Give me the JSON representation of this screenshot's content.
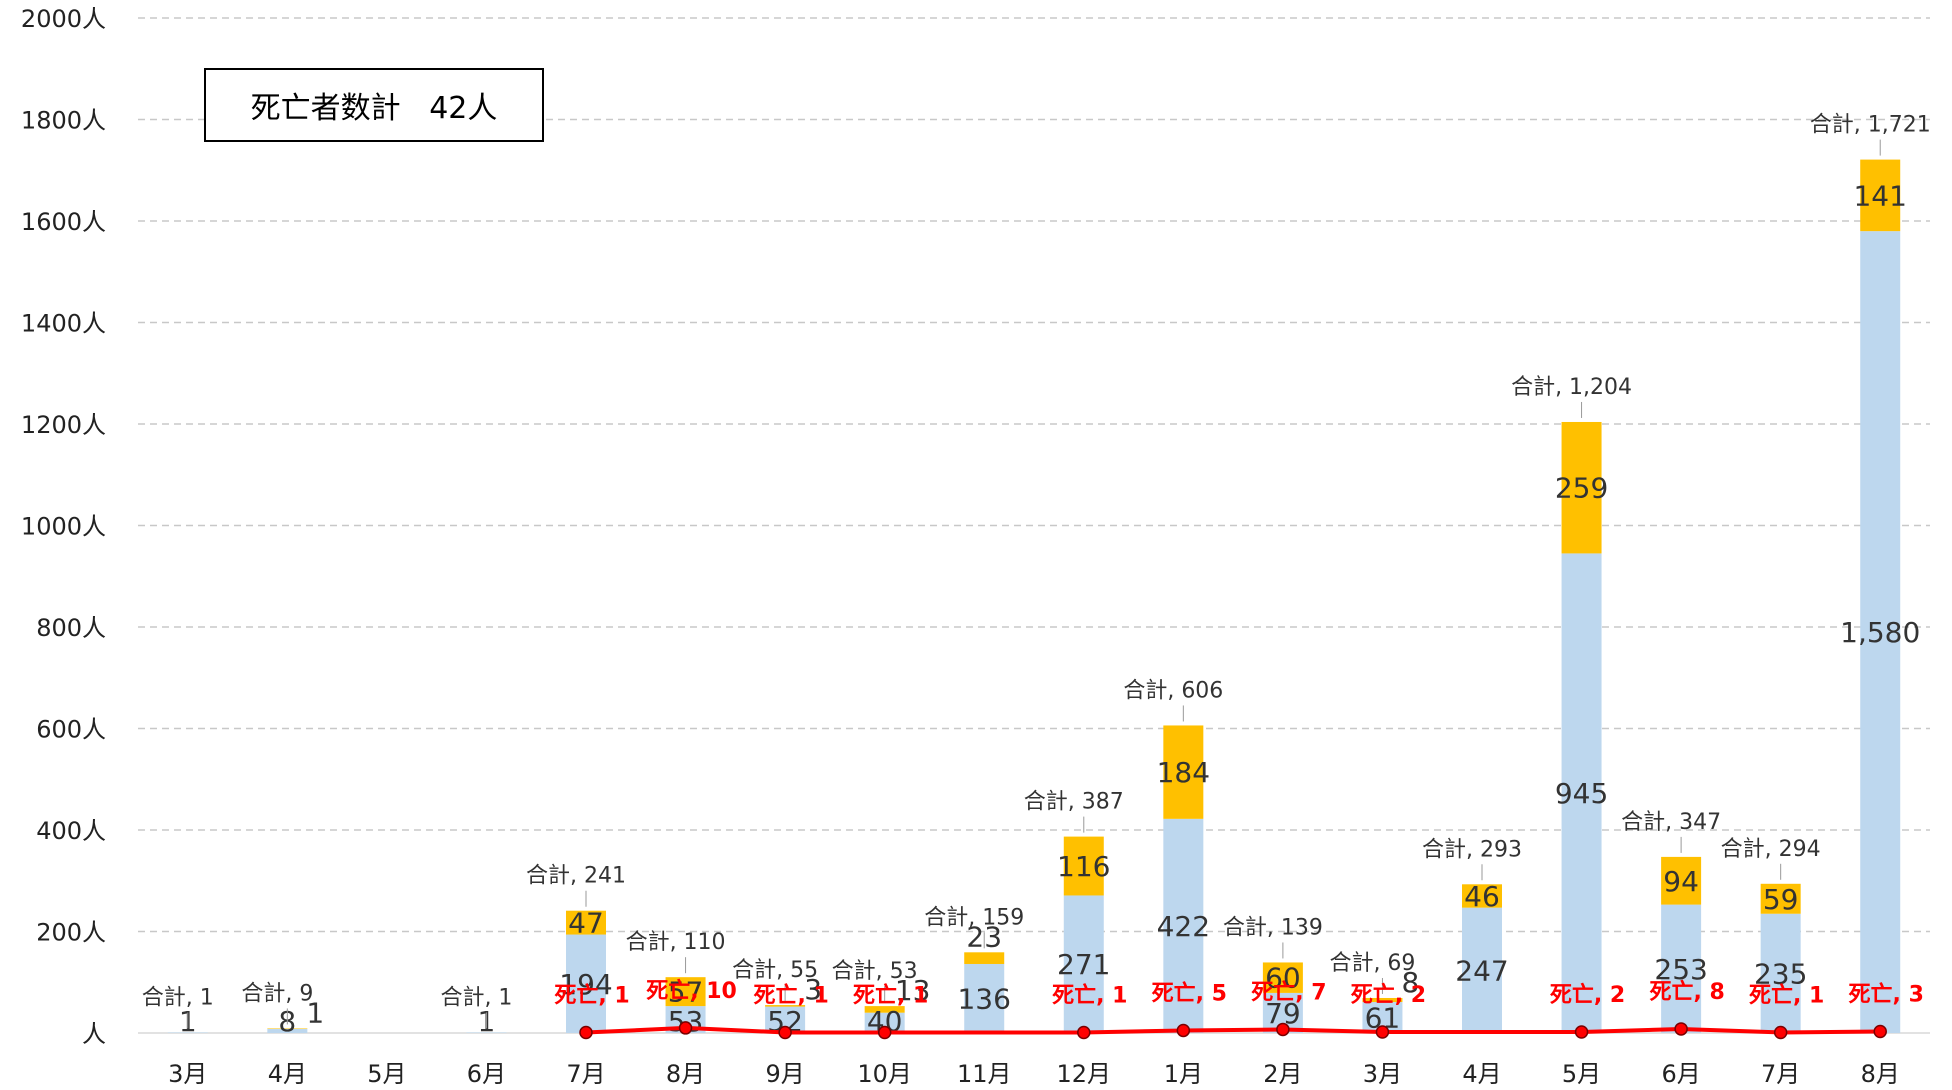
{
  "summary": {
    "label": "死亡者数計",
    "value": "42人"
  },
  "colors": {
    "base": "#bdd7ee",
    "top": "#ffc000",
    "line": "#ff0000",
    "grid": "#c8c8c8"
  },
  "chart_data": {
    "type": "bar",
    "stacked": true,
    "ylim": [
      0,
      2000
    ],
    "y_ticks": [
      "人",
      "200人",
      "400人",
      "600人",
      "800人",
      "1000人",
      "1200人",
      "1400人",
      "1600人",
      "1800人",
      "2000人"
    ],
    "grid": true,
    "categories": [
      "3月",
      "4月",
      "5月",
      "6月",
      "7月",
      "8月",
      "9月",
      "10月",
      "11月",
      "12月",
      "1月",
      "2月",
      "3月",
      "4月",
      "5月",
      "6月",
      "7月",
      "8月"
    ],
    "series": [
      {
        "values": [
          1,
          8,
          0,
          1,
          194,
          53,
          52,
          40,
          136,
          271,
          422,
          79,
          61,
          247,
          945,
          253,
          235,
          1580
        ],
        "labels": [
          "1",
          "8",
          "",
          "1",
          "194",
          "53",
          "52",
          "40",
          "136",
          "271",
          "422",
          "79",
          "61",
          "247",
          "945",
          "253",
          "235",
          "1,580"
        ]
      },
      {
        "values": [
          0,
          1,
          0,
          0,
          47,
          57,
          3,
          13,
          23,
          116,
          184,
          60,
          8,
          46,
          259,
          94,
          59,
          141
        ],
        "labels": [
          "",
          "1",
          "",
          "",
          "47",
          "57",
          "3",
          "13",
          "23",
          "116",
          "184",
          "60",
          "8",
          "46",
          "259",
          "94",
          "59",
          "141"
        ]
      }
    ],
    "totals": [
      "合計, 1",
      "合計, 9",
      "",
      "合計, 1",
      "合計, 241",
      "合計, 110",
      "合計, 55",
      "合計, 53",
      "合計, 159",
      "合計, 387",
      "合計, 606",
      "合計, 139",
      "合計, 69",
      "合計, 293",
      "合計, 1,204",
      "合計, 347",
      "合計, 294",
      "合計, 1,721"
    ],
    "deaths": {
      "values": [
        null,
        null,
        null,
        null,
        1,
        10,
        1,
        1,
        null,
        1,
        5,
        7,
        2,
        null,
        2,
        8,
        1,
        3
      ],
      "labels": [
        "",
        "",
        "",
        "",
        "死亡, 1",
        "死亡, 10",
        "死亡, 1",
        "死亡, 1",
        "",
        "死亡, 1",
        "死亡, 5",
        "死亡, 7",
        "死亡, 2",
        "",
        "死亡, 2",
        "死亡, 8",
        "死亡, 1",
        "死亡, 3"
      ]
    }
  }
}
